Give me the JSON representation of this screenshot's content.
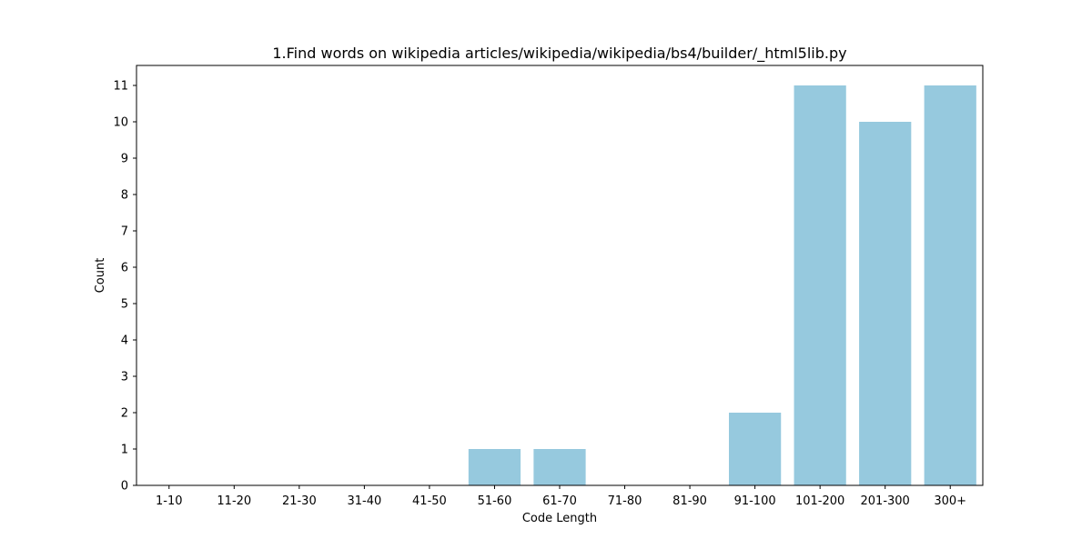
{
  "chart_data": {
    "type": "bar",
    "title": "1.Find words on wikipedia articles/wikipedia/wikipedia/bs4/builder/_html5lib.py",
    "xlabel": "Code Length",
    "ylabel": "Count",
    "categories": [
      "1-10",
      "11-20",
      "21-30",
      "31-40",
      "41-50",
      "51-60",
      "61-70",
      "71-80",
      "81-90",
      "91-100",
      "101-200",
      "201-300",
      "300+"
    ],
    "values": [
      0,
      0,
      0,
      0,
      0,
      1,
      1,
      0,
      0,
      2,
      11,
      10,
      11
    ],
    "ylim": [
      0,
      11.55
    ],
    "yticks": [
      0,
      1,
      2,
      3,
      4,
      5,
      6,
      7,
      8,
      9,
      10,
      11
    ],
    "grid": false,
    "bar_color": "#96c9de"
  }
}
